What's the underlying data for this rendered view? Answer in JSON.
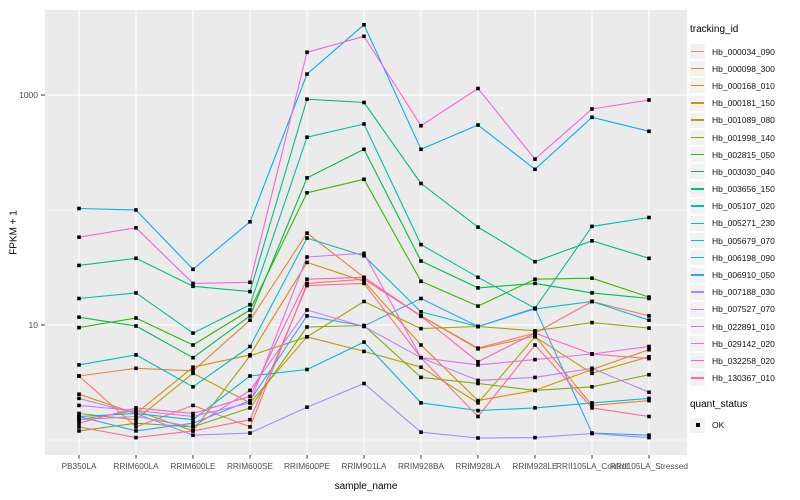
{
  "figure": {
    "background": "#FFFFFF",
    "panel_background": "#EBEBEB",
    "grid_color": "#FFFFFF",
    "axis_text_color": "#4D4D4D",
    "axis_title_color": "#000000",
    "point_color": "#000000"
  },
  "legend": {
    "tracking_title": "tracking_id",
    "quant_title": "quant_status",
    "quant_value": "OK",
    "key_background": "#F2F2F2"
  },
  "chart_data": {
    "type": "line",
    "title": "",
    "xlabel": "sample_name",
    "ylabel": "FPKM + 1",
    "y_scale": "log10",
    "y_tick_labels": [
      "10",
      "1000"
    ],
    "y_tick_values": [
      10,
      1000
    ],
    "y_minor_gridlines": [
      1,
      100
    ],
    "ylim": [
      0.85,
      5500
    ],
    "grid": true,
    "legend_position": "right",
    "marker_shape": "small black square",
    "categories": [
      "PB350LA",
      "RRIM600LA",
      "RRIM600LE",
      "RRIM600SE",
      "RRIM600PE",
      "RRIM901LA",
      "RRIM928BA",
      "RRIM928LA",
      "RRIM928LE",
      "RRII105LA_Control",
      "RRII105LA_Stressed"
    ],
    "series": [
      {
        "name": "Hb_000034_090",
        "color": "#F8766D",
        "values": [
          3.6,
          1.3,
          2.0,
          1.3,
          23,
          25,
          12,
          6.3,
          8.5,
          16,
          12
        ]
      },
      {
        "name": "Hb_000098_300",
        "color": "#EA8331",
        "values": [
          3.6,
          4.2,
          4.0,
          11,
          63,
          26,
          12,
          6.2,
          8.0,
          2.0,
          2.2
        ]
      },
      {
        "name": "Hb_000168_010",
        "color": "#D89000",
        "values": [
          2.5,
          1.7,
          4.3,
          5.5,
          35,
          24,
          6.7,
          2.2,
          2.7,
          4.1,
          6.1
        ]
      },
      {
        "name": "Hb_000181_150",
        "color": "#C09B00",
        "values": [
          1.7,
          1.5,
          3.8,
          2.1,
          7.9,
          5.9,
          4.3,
          2.1,
          7.9,
          3.8,
          5.3
        ]
      },
      {
        "name": "Hb_001089_080",
        "color": "#A3A500",
        "values": [
          1.5,
          1.8,
          1.2,
          5.4,
          7.9,
          16,
          9.3,
          9.7,
          8.9,
          10.5,
          9.4
        ]
      },
      {
        "name": "Hb_001998_140",
        "color": "#7CAE00",
        "values": [
          1.2,
          1.4,
          1.3,
          1.9,
          9.6,
          9.9,
          3.5,
          3.1,
          2.7,
          2.9,
          3.7
        ]
      },
      {
        "name": "Hb_002815_050",
        "color": "#39B600",
        "values": [
          9.5,
          11.5,
          6.7,
          13.5,
          141,
          185,
          24,
          14.6,
          25,
          25.5,
          17.5
        ]
      },
      {
        "name": "Hb_003030_040",
        "color": "#00BB4E",
        "values": [
          11.7,
          9.8,
          5.2,
          12,
          190,
          337,
          36,
          21,
          23,
          19,
          17
        ]
      },
      {
        "name": "Hb_003656_150",
        "color": "#00BF7D",
        "values": [
          33,
          38,
          21.7,
          19.5,
          920,
          860,
          170,
          71,
          35.5,
          54,
          38
        ]
      },
      {
        "name": "Hb_005107_020",
        "color": "#00C1A3",
        "values": [
          17,
          19,
          8.5,
          15,
          430,
          560,
          50,
          26,
          14,
          72,
          86
        ]
      },
      {
        "name": "Hb_005271_230",
        "color": "#00BFC4",
        "values": [
          4.5,
          5.5,
          2.9,
          6.5,
          57,
          40,
          13,
          9.7,
          13.8,
          16,
          11
        ]
      },
      {
        "name": "Hb_005679_070",
        "color": "#00BBDA",
        "values": [
          1.6,
          1.7,
          1.5,
          3.6,
          4.1,
          7.1,
          2.1,
          1.8,
          1.9,
          2.1,
          2.3
        ]
      },
      {
        "name": "Hb_006198_090",
        "color": "#00B0F6",
        "values": [
          103,
          100,
          30.5,
          79,
          1520,
          4080,
          337,
          548,
          226,
          640,
          483
        ]
      },
      {
        "name": "Hb_006910_050",
        "color": "#35A2FF",
        "values": [
          1.6,
          1.2,
          1.4,
          2.2,
          12,
          9.8,
          17,
          9.7,
          14,
          1.15,
          1.1
        ]
      },
      {
        "name": "Hb_007188_030",
        "color": "#9590FF",
        "values": [
          2.3,
          1.7,
          1.1,
          1.15,
          1.93,
          3.1,
          1.17,
          1.04,
          1.05,
          1.14,
          1.05
        ]
      },
      {
        "name": "Hb_007527_070",
        "color": "#C77CFF",
        "values": [
          1.5,
          1.6,
          1.3,
          2.7,
          13.5,
          9.7,
          5.2,
          3.3,
          3.5,
          4.2,
          2.6
        ]
      },
      {
        "name": "Hb_022891_010",
        "color": "#E76BF3",
        "values": [
          2.0,
          1.8,
          1.6,
          2.1,
          39,
          42,
          5.2,
          4.5,
          5.0,
          5.6,
          6.5
        ]
      },
      {
        "name": "Hb_029142_020",
        "color": "#FA62DB",
        "values": [
          58,
          70,
          23,
          23.5,
          2350,
          3240,
          541,
          1140,
          277,
          755,
          905
        ]
      },
      {
        "name": "Hb_032258_020",
        "color": "#FF62BC",
        "values": [
          1.4,
          1.9,
          1.7,
          2.4,
          25,
          26,
          11.9,
          4.8,
          8.5,
          5.6,
          5.1
        ]
      },
      {
        "name": "Hb_130367_010",
        "color": "#FF6A98",
        "values": [
          1.3,
          1.05,
          1.2,
          1.5,
          22,
          23,
          5.2,
          1.6,
          6.7,
          1.9,
          1.6
        ]
      }
    ]
  }
}
